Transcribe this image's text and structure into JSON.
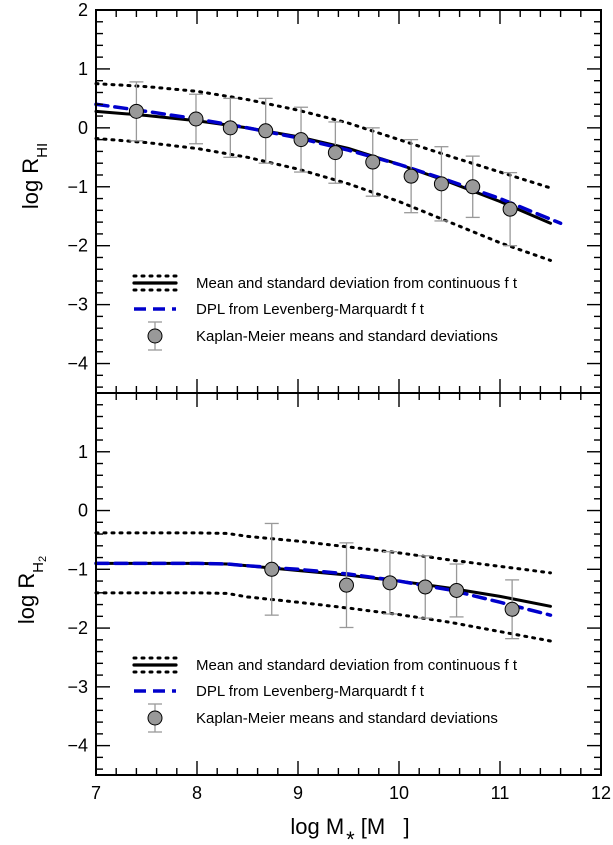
{
  "chart_data": [
    {
      "type": "line",
      "panel": "top",
      "ylabel": "log R",
      "ylabel_sub": "HI",
      "xlim": [
        7,
        12
      ],
      "ylim": [
        -4.5,
        2
      ],
      "yticks": [
        2,
        1,
        0,
        -1,
        -2,
        -3,
        -4
      ],
      "grid": false,
      "legend_placement": "lower-left",
      "legend": {
        "continuous": "Mean and standard deviation from continuous f t",
        "dpl": "DPL from Levenberg-Marquardt f t",
        "km": "Kaplan-Meier means and standard deviations"
      },
      "series": [
        {
          "kind": "mean",
          "x": [
            7.0,
            7.5,
            8.0,
            8.5,
            9.0,
            9.5,
            10.0,
            10.5,
            11.0,
            11.5
          ],
          "y": [
            0.28,
            0.21,
            0.12,
            0.0,
            -0.15,
            -0.35,
            -0.62,
            -0.92,
            -1.25,
            -1.62
          ],
          "color": "#000000"
        },
        {
          "kind": "upper",
          "x": [
            7.0,
            7.5,
            8.0,
            8.5,
            9.0,
            9.5,
            10.0,
            10.5,
            11.0,
            11.5
          ],
          "y": [
            0.75,
            0.7,
            0.62,
            0.48,
            0.3,
            0.08,
            -0.2,
            -0.48,
            -0.75,
            -1.02
          ],
          "color": "#000000"
        },
        {
          "kind": "lower",
          "x": [
            7.0,
            7.5,
            8.0,
            8.5,
            9.0,
            9.5,
            10.0,
            10.5,
            11.0,
            11.5
          ],
          "y": [
            -0.18,
            -0.25,
            -0.35,
            -0.5,
            -0.7,
            -0.95,
            -1.25,
            -1.6,
            -1.95,
            -2.25
          ],
          "color": "#000000"
        },
        {
          "kind": "dpl",
          "x": [
            7.0,
            7.5,
            8.0,
            8.5,
            9.0,
            9.5,
            10.0,
            10.5,
            11.0,
            11.6
          ],
          "y": [
            0.4,
            0.28,
            0.15,
            0.0,
            -0.17,
            -0.38,
            -0.62,
            -0.9,
            -1.2,
            -1.62
          ],
          "color": "#0000cc"
        },
        {
          "kind": "km",
          "x": [
            7.4,
            7.99,
            8.33,
            8.68,
            9.03,
            9.37,
            9.74,
            10.12,
            10.42,
            10.73,
            11.1
          ],
          "y": [
            0.28,
            0.15,
            0.0,
            -0.05,
            -0.2,
            -0.42,
            -0.58,
            -0.82,
            -0.95,
            -1.0,
            -1.38
          ],
          "yerr": [
            0.5,
            0.42,
            0.5,
            0.55,
            0.55,
            0.52,
            0.58,
            0.62,
            0.63,
            0.52,
            0.62
          ],
          "color": "#999999"
        }
      ]
    },
    {
      "type": "line",
      "panel": "bottom",
      "xlabel": "log M",
      "xlabel_sub": "*",
      "xlabel_unit": "[M   ]",
      "ylabel": "log R",
      "ylabel_sub": "H",
      "ylabel_subsub": "2",
      "xlim": [
        7,
        12
      ],
      "ylim": [
        -4.5,
        2
      ],
      "xticks": [
        7,
        8,
        9,
        10,
        11,
        12
      ],
      "yticks": [
        1,
        0,
        -1,
        -2,
        -3,
        -4
      ],
      "grid": false,
      "legend_placement": "lower-left",
      "legend": {
        "continuous": "Mean and standard deviation from continuous f t",
        "dpl": "DPL from Levenberg-Marquardt f t",
        "km": "Kaplan-Meier means and standard deviations"
      },
      "series": [
        {
          "kind": "mean",
          "x": [
            7.0,
            7.5,
            8.0,
            8.3,
            8.5,
            9.0,
            9.5,
            10.0,
            10.5,
            11.0,
            11.5
          ],
          "y": [
            -0.9,
            -0.9,
            -0.9,
            -0.91,
            -0.94,
            -1.02,
            -1.1,
            -1.2,
            -1.32,
            -1.46,
            -1.63
          ],
          "color": "#000000"
        },
        {
          "kind": "upper",
          "x": [
            7.0,
            7.5,
            8.0,
            8.3,
            8.5,
            9.0,
            9.5,
            10.0,
            10.5,
            11.0,
            11.5
          ],
          "y": [
            -0.38,
            -0.38,
            -0.38,
            -0.39,
            -0.44,
            -0.52,
            -0.62,
            -0.72,
            -0.84,
            -0.95,
            -1.06
          ],
          "color": "#000000"
        },
        {
          "kind": "lower",
          "x": [
            7.0,
            7.5,
            8.0,
            8.3,
            8.5,
            9.0,
            9.5,
            10.0,
            10.5,
            11.0,
            11.5
          ],
          "y": [
            -1.4,
            -1.4,
            -1.4,
            -1.41,
            -1.47,
            -1.56,
            -1.66,
            -1.77,
            -1.9,
            -2.06,
            -2.22
          ],
          "color": "#000000"
        },
        {
          "kind": "dpl",
          "x": [
            7.0,
            7.5,
            8.0,
            8.3,
            8.5,
            9.0,
            9.5,
            10.0,
            10.5,
            11.0,
            11.5
          ],
          "y": [
            -0.9,
            -0.9,
            -0.9,
            -0.91,
            -0.94,
            -1.0,
            -1.08,
            -1.2,
            -1.35,
            -1.56,
            -1.78
          ],
          "color": "#0000cc"
        },
        {
          "kind": "km",
          "x": [
            8.74,
            9.48,
            9.91,
            10.26,
            10.57,
            11.12
          ],
          "y": [
            -1.0,
            -1.27,
            -1.23,
            -1.3,
            -1.36,
            -1.68
          ],
          "yerr": [
            0.78,
            0.72,
            0.53,
            0.53,
            0.45,
            0.5
          ],
          "color": "#999999"
        }
      ]
    }
  ]
}
